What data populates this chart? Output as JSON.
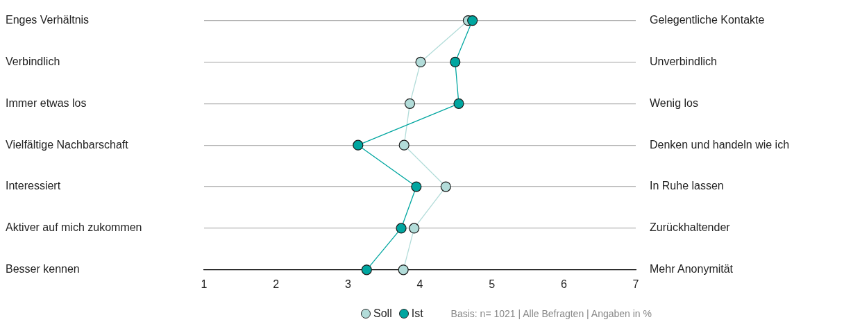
{
  "chart_data": {
    "type": "line",
    "orientation": "horizontal",
    "categories": [
      "Enges Verhältnis",
      "Verbindlich",
      "Immer etwas los",
      "Vielfältige Nachbarschaft",
      "Interessiert",
      "Aktiver auf mich zukommen",
      "Besser kennen"
    ],
    "y2_categories": [
      "Gelegentliche Kontakte",
      "Unverbindlich",
      "Wenig los",
      "Denken und handeln wie ich",
      "In Ruhe lassen",
      "Zurückhaltender",
      "Mehr Anonymität"
    ],
    "series": [
      {
        "name": "Soll",
        "color": "#b2dcd9",
        "values": [
          4.67,
          4.01,
          3.86,
          3.78,
          4.36,
          3.92,
          3.77
        ]
      },
      {
        "name": "Ist",
        "color": "#00a6a0",
        "values": [
          4.73,
          4.49,
          4.54,
          3.14,
          3.95,
          3.74,
          3.26
        ]
      }
    ],
    "xlim": [
      1,
      7
    ],
    "xticks": [
      1,
      2,
      3,
      4,
      5,
      6,
      7
    ],
    "grid": "y",
    "legend": "bottom",
    "marker": "circle",
    "line_style": "solid",
    "annotations": [
      "Basis: n= 1021 | Alle Befragten | Angaben in %"
    ]
  }
}
